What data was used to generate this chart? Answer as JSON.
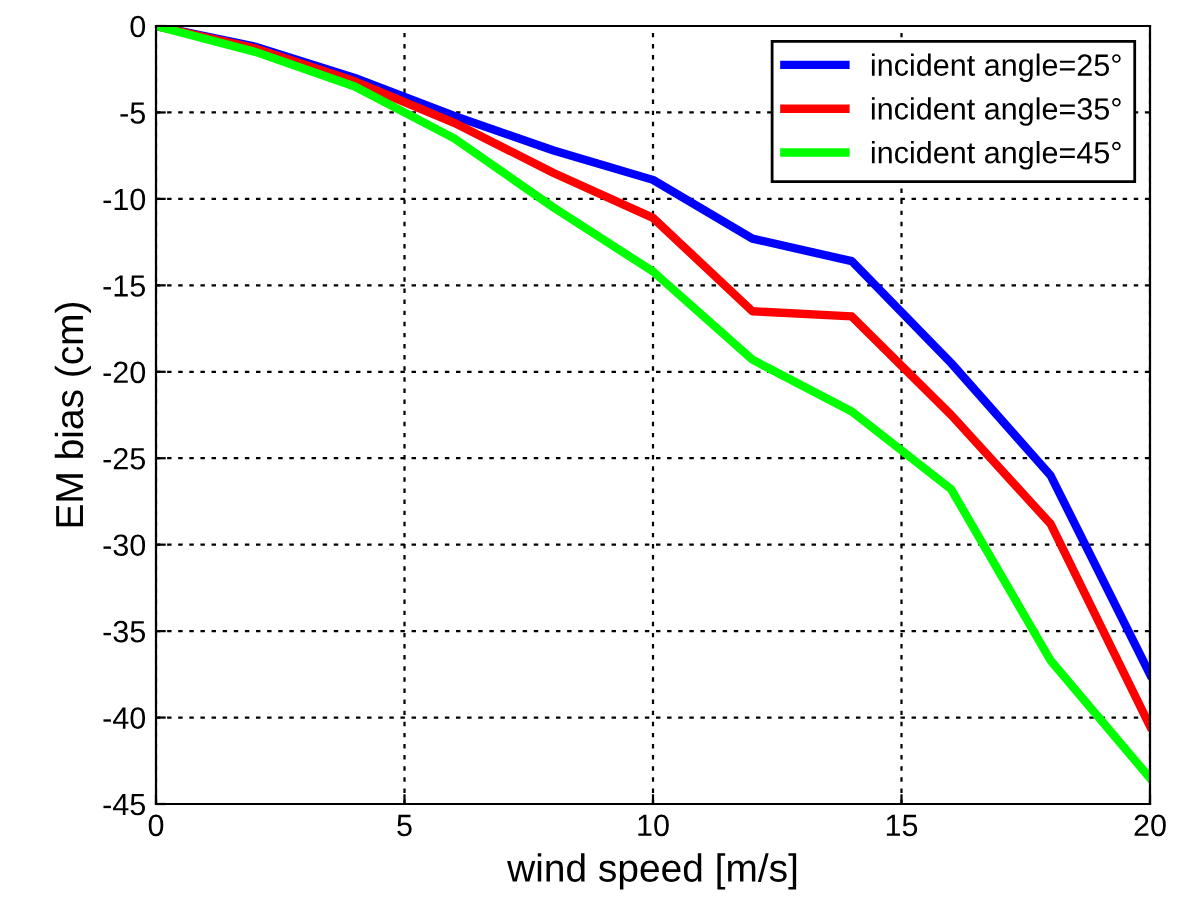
{
  "chart_data": {
    "type": "line",
    "xlabel": "wind speed [m/s]",
    "ylabel": "EM bias (cm)",
    "x": [
      0,
      2,
      4,
      6,
      8,
      10,
      12,
      14,
      16,
      18,
      20
    ],
    "series": [
      {
        "name": "incident angle=25°",
        "color": "#0000ff",
        "values": [
          0,
          -1.2,
          -3,
          -5.2,
          -7.2,
          -8.9,
          -12.3,
          -13.6,
          -19.5,
          -26,
          -37.5
        ]
      },
      {
        "name": "incident angle=35°",
        "color": "#ff0000",
        "values": [
          0,
          -1.3,
          -3.2,
          -5.6,
          -8.5,
          -11.1,
          -16.5,
          -16.8,
          -22.5,
          -28.8,
          -40.5
        ]
      },
      {
        "name": "incident angle=45°",
        "color": "#00ff00",
        "values": [
          0,
          -1.5,
          -3.5,
          -6.5,
          -10.5,
          -14.2,
          -19.3,
          -22.3,
          -26.8,
          -36.7,
          -43.5
        ]
      }
    ],
    "xlim": [
      0,
      20
    ],
    "xticks": [
      0,
      5,
      10,
      15,
      20
    ],
    "ylim": [
      -45,
      0
    ],
    "yticks": [
      -45,
      -40,
      -35,
      -30,
      -25,
      -20,
      -15,
      -10,
      -5,
      0
    ],
    "grid": true,
    "legend": "top right"
  }
}
